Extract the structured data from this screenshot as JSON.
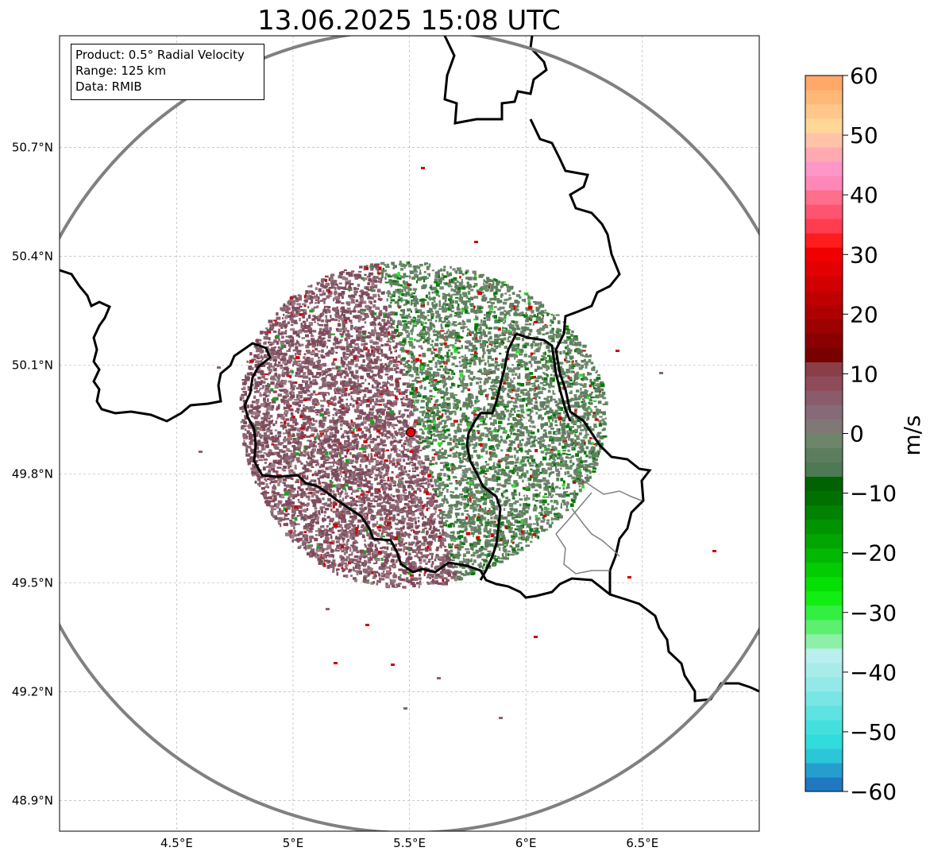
{
  "title": "13.06.2025 15:08 UTC",
  "info_box": {
    "product": "Product: 0.5° Radial Velocity",
    "range": "Range: 125 km",
    "data_source": "Data: RMIB"
  },
  "map": {
    "lon_range": [
      4.0,
      7.0
    ],
    "lat_range": [
      48.8,
      50.98
    ],
    "lat_ticks": [
      {
        "value": 48.9,
        "label": "48.9°N"
      },
      {
        "value": 49.2,
        "label": "49.2°N"
      },
      {
        "value": 49.5,
        "label": "49.5°N"
      },
      {
        "value": 49.8,
        "label": "49.8°N"
      },
      {
        "value": 50.1,
        "label": "50.1°N"
      },
      {
        "value": 50.4,
        "label": "50.4°N"
      },
      {
        "value": 50.7,
        "label": "50.7°N"
      }
    ],
    "lon_ticks": [
      {
        "value": 4.5,
        "label": "4.5°E"
      },
      {
        "value": 5.0,
        "label": "5°E"
      },
      {
        "value": 5.5,
        "label": "5.5°E"
      },
      {
        "value": 6.0,
        "label": "6°E"
      },
      {
        "value": 6.5,
        "label": "6.5°E"
      }
    ],
    "gridlines": true,
    "radar_site": {
      "lon": 5.505,
      "lat": 49.915,
      "color": "#e8000b"
    },
    "range_ring_km": 125,
    "range_ring_color": "#808080",
    "border_color": "#000000",
    "minor_border_color": "#808080"
  },
  "colorbar": {
    "label": "m/s",
    "min": -60,
    "max": 60,
    "ticks": [
      {
        "value": 60,
        "label": "60"
      },
      {
        "value": 50,
        "label": "50"
      },
      {
        "value": 40,
        "label": "40"
      },
      {
        "value": 30,
        "label": "30"
      },
      {
        "value": 20,
        "label": "20"
      },
      {
        "value": 10,
        "label": "10"
      },
      {
        "value": 0,
        "label": "0"
      },
      {
        "value": -10,
        "label": "−10"
      },
      {
        "value": -20,
        "label": "−20"
      },
      {
        "value": -30,
        "label": "−30"
      },
      {
        "value": -40,
        "label": "−40"
      },
      {
        "value": -50,
        "label": "−50"
      },
      {
        "value": -60,
        "label": "−60"
      }
    ],
    "colors": [
      "#1f78c0",
      "#259ecf",
      "#2bc6d8",
      "#31dcdc",
      "#45e0de",
      "#5de3e1",
      "#78e6e4",
      "#93e9e8",
      "#a8ecea",
      "#b9efee",
      "#8ef0a8",
      "#5cef70",
      "#32ef42",
      "#12ee12",
      "#04e004",
      "#03cc03",
      "#02b802",
      "#02a602",
      "#019401",
      "#018201",
      "#007000",
      "#006200",
      "#4d7a52",
      "#5c7e5e",
      "#6d8568",
      "#807877",
      "#866a78",
      "#8a5c6b",
      "#8e4c5a",
      "#8a3e48",
      "#7a0000",
      "#8a0000",
      "#9c0000",
      "#ae0000",
      "#c00000",
      "#d20000",
      "#e20000",
      "#f00000",
      "#ff1c1c",
      "#ff3c50",
      "#ff5470",
      "#ff6e8a",
      "#ff88b8",
      "#ff96c8",
      "#ffaab0",
      "#ffc4a8",
      "#ffd898",
      "#ffc88a",
      "#ffb878",
      "#ffa868"
    ]
  }
}
